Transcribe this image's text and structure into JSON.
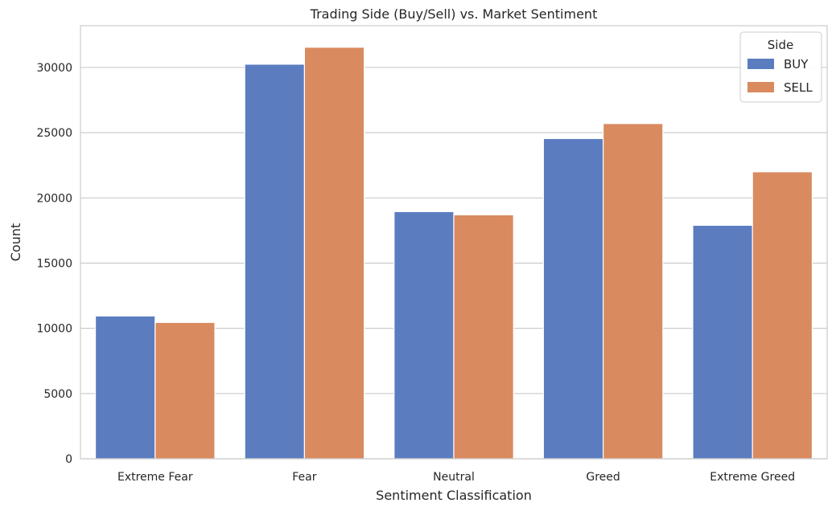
{
  "chart_data": {
    "type": "bar",
    "title": "Trading Side (Buy/Sell) vs. Market Sentiment",
    "xlabel": "Sentiment Classification",
    "ylabel": "Count",
    "categories": [
      "Extreme Fear",
      "Fear",
      "Neutral",
      "Greed",
      "Extreme Greed"
    ],
    "series": [
      {
        "name": "BUY",
        "color": "#5b7dc0",
        "values": [
          10950,
          30250,
          18950,
          24550,
          17900
        ]
      },
      {
        "name": "SELL",
        "color": "#d98a5f",
        "values": [
          10450,
          31550,
          18700,
          25700,
          22000
        ]
      }
    ],
    "ylim": [
      0,
      33200
    ],
    "yticks": [
      0,
      5000,
      10000,
      15000,
      20000,
      25000,
      30000
    ],
    "grid": "horizontal",
    "legend": {
      "title": "Side",
      "placement": "top-right"
    }
  }
}
